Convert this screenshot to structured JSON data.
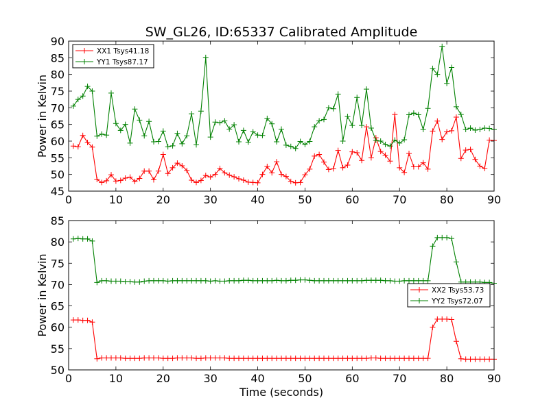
{
  "chart_data": [
    {
      "type": "line",
      "title": "SW_GL26, ID:65337 Calibrated Amplitude",
      "xlabel": "",
      "ylabel": "Power in Kelvin",
      "xlim": [
        0,
        90
      ],
      "ylim": [
        45,
        90
      ],
      "xticks": [
        0,
        10,
        20,
        30,
        40,
        50,
        60,
        70,
        80,
        90
      ],
      "yticks": [
        45,
        50,
        55,
        60,
        65,
        70,
        75,
        80,
        85,
        90
      ],
      "legend_position": "top-left",
      "series": [
        {
          "name": "XX1 Tsys41.18",
          "color": "#ff0000",
          "x": [
            1,
            2,
            3,
            4,
            5,
            6,
            7,
            8,
            9,
            10,
            11,
            12,
            13,
            14,
            15,
            16,
            17,
            18,
            19,
            20,
            21,
            22,
            23,
            24,
            25,
            26,
            27,
            28,
            29,
            30,
            31,
            32,
            33,
            34,
            35,
            36,
            37,
            38,
            39,
            40,
            41,
            42,
            43,
            44,
            45,
            46,
            47,
            48,
            49,
            50,
            51,
            52,
            53,
            54,
            55,
            56,
            57,
            58,
            59,
            60,
            61,
            62,
            63,
            64,
            65,
            66,
            67,
            68,
            69,
            70,
            71,
            72,
            73,
            74,
            75,
            76,
            77,
            78,
            79,
            80,
            81,
            82,
            83,
            84,
            85,
            86,
            87,
            88,
            89,
            90
          ],
          "values": [
            58.5,
            58.3,
            61.7,
            59.6,
            58.2,
            48.5,
            47.6,
            48.1,
            49.9,
            48.0,
            48.2,
            48.9,
            49.2,
            47.9,
            48.8,
            51.0,
            51.0,
            48.4,
            51.0,
            56.0,
            50.3,
            52.0,
            53.4,
            52.6,
            51.2,
            48.3,
            47.6,
            48.2,
            49.7,
            49.2,
            50.0,
            51.8,
            50.5,
            49.8,
            49.3,
            48.7,
            48.3,
            47.7,
            47.6,
            47.5,
            50.0,
            52.4,
            50.5,
            53.8,
            50.0,
            49.4,
            47.9,
            47.5,
            47.6,
            49.9,
            51.6,
            55.5,
            56.0,
            53.7,
            51.5,
            51.7,
            57.2,
            52.0,
            52.8,
            56.8,
            56.5,
            54.2,
            64.3,
            55.0,
            61.0,
            56.9,
            55.8,
            54.0,
            68.0,
            52.0,
            50.6,
            56.3,
            52.3,
            52.3,
            53.5,
            51.6,
            63.0,
            66.0,
            60.5,
            62.8,
            63.1,
            67.2,
            54.8,
            57.3,
            57.5,
            54.5,
            52.5,
            51.8,
            60.3,
            60.2
          ]
        },
        {
          "name": "YY1 Tsys87.17",
          "color": "#008000",
          "x": [
            1,
            2,
            3,
            4,
            5,
            6,
            7,
            8,
            9,
            10,
            11,
            12,
            13,
            14,
            15,
            16,
            17,
            18,
            19,
            20,
            21,
            22,
            23,
            24,
            25,
            26,
            27,
            28,
            29,
            30,
            31,
            32,
            33,
            34,
            35,
            36,
            37,
            38,
            39,
            40,
            41,
            42,
            43,
            44,
            45,
            46,
            47,
            48,
            49,
            50,
            51,
            52,
            53,
            54,
            55,
            56,
            57,
            58,
            59,
            60,
            61,
            62,
            63,
            64,
            65,
            66,
            67,
            68,
            69,
            70,
            71,
            72,
            73,
            74,
            75,
            76,
            77,
            78,
            79,
            80,
            81,
            82,
            83,
            84,
            85,
            86,
            87,
            88,
            89,
            90
          ],
          "values": [
            70.5,
            72.5,
            73.5,
            76.4,
            75.0,
            61.5,
            62.1,
            61.8,
            74.4,
            65.3,
            63.2,
            65.0,
            59.4,
            69.6,
            66.3,
            61.6,
            65.9,
            59.8,
            59.9,
            63.0,
            58.3,
            58.6,
            62.3,
            59.2,
            61.6,
            68.2,
            58.9,
            69.0,
            85.1,
            61.2,
            65.7,
            65.5,
            66.1,
            63.6,
            64.9,
            59.8,
            63.2,
            59.7,
            62.8,
            61.8,
            61.7,
            66.8,
            65.2,
            59.8,
            63.6,
            58.8,
            58.4,
            57.8,
            59.9,
            59.0,
            59.9,
            64.3,
            66.1,
            66.5,
            70.0,
            69.7,
            74.1,
            60.0,
            67.4,
            64.7,
            73.1,
            64.7,
            75.6,
            63.9,
            60.2,
            60.0,
            59.0,
            58.5,
            60.3,
            59.4,
            60.4,
            67.9,
            68.4,
            67.9,
            63.5,
            69.8,
            81.8,
            80.0,
            88.4,
            77.3,
            82.1,
            70.3,
            68.0,
            63.5,
            63.9,
            63.3,
            63.5,
            63.9,
            63.8,
            63.5
          ]
        }
      ]
    },
    {
      "type": "line",
      "title": "",
      "xlabel": "Time (seconds)",
      "ylabel": "Power in Kelvin",
      "xlim": [
        0,
        90
      ],
      "ylim": [
        50,
        85
      ],
      "xticks": [
        0,
        10,
        20,
        30,
        40,
        50,
        60,
        70,
        80,
        90
      ],
      "yticks": [
        50,
        55,
        60,
        65,
        70,
        75,
        80,
        85
      ],
      "legend_position": "right",
      "series": [
        {
          "name": "XX2 Tsys53.73",
          "color": "#ff0000",
          "x": [
            1,
            2,
            3,
            4,
            5,
            6,
            7,
            8,
            9,
            10,
            11,
            12,
            13,
            14,
            15,
            16,
            17,
            18,
            19,
            20,
            21,
            22,
            23,
            24,
            25,
            26,
            27,
            28,
            29,
            30,
            31,
            32,
            33,
            34,
            35,
            36,
            37,
            38,
            39,
            40,
            41,
            42,
            43,
            44,
            45,
            46,
            47,
            48,
            49,
            50,
            51,
            52,
            53,
            54,
            55,
            56,
            57,
            58,
            59,
            60,
            61,
            62,
            63,
            64,
            65,
            66,
            67,
            68,
            69,
            70,
            71,
            72,
            73,
            74,
            75,
            76,
            77,
            78,
            79,
            80,
            81,
            82,
            83,
            84,
            85,
            86,
            87,
            88,
            89,
            90
          ],
          "values": [
            61.7,
            61.7,
            61.6,
            61.6,
            61.2,
            52.6,
            52.8,
            52.8,
            52.8,
            52.8,
            52.8,
            52.7,
            52.7,
            52.7,
            52.7,
            52.8,
            52.8,
            52.8,
            52.8,
            52.7,
            52.7,
            52.7,
            52.8,
            52.8,
            52.8,
            52.8,
            52.7,
            52.7,
            52.8,
            52.8,
            52.8,
            52.8,
            52.8,
            52.7,
            52.7,
            52.7,
            52.7,
            52.7,
            52.7,
            52.7,
            52.7,
            52.7,
            52.7,
            52.7,
            52.7,
            52.7,
            52.7,
            52.7,
            52.7,
            52.7,
            52.7,
            52.7,
            52.7,
            52.7,
            52.7,
            52.7,
            52.7,
            52.7,
            52.7,
            52.7,
            52.7,
            52.7,
            52.7,
            52.8,
            52.8,
            52.7,
            52.7,
            52.7,
            52.7,
            52.7,
            52.7,
            52.7,
            52.7,
            52.7,
            52.7,
            52.7,
            60.0,
            61.9,
            61.9,
            61.9,
            61.8,
            56.7,
            52.6,
            52.5,
            52.5,
            52.5,
            52.5,
            52.5,
            52.5,
            52.5
          ]
        },
        {
          "name": "YY2 Tsys72.07",
          "color": "#008000",
          "x": [
            1,
            2,
            3,
            4,
            5,
            6,
            7,
            8,
            9,
            10,
            11,
            12,
            13,
            14,
            15,
            16,
            17,
            18,
            19,
            20,
            21,
            22,
            23,
            24,
            25,
            26,
            27,
            28,
            29,
            30,
            31,
            32,
            33,
            34,
            35,
            36,
            37,
            38,
            39,
            40,
            41,
            42,
            43,
            44,
            45,
            46,
            47,
            48,
            49,
            50,
            51,
            52,
            53,
            54,
            55,
            56,
            57,
            58,
            59,
            60,
            61,
            62,
            63,
            64,
            65,
            66,
            67,
            68,
            69,
            70,
            71,
            72,
            73,
            74,
            75,
            76,
            77,
            78,
            79,
            80,
            81,
            82,
            83,
            84,
            85,
            86,
            87,
            88,
            89,
            90
          ],
          "values": [
            80.7,
            80.8,
            80.7,
            80.7,
            80.2,
            70.5,
            70.9,
            70.9,
            70.8,
            70.8,
            70.8,
            70.7,
            70.7,
            70.6,
            70.6,
            70.8,
            70.9,
            70.9,
            70.9,
            70.9,
            70.8,
            70.9,
            70.9,
            70.9,
            70.9,
            70.9,
            70.9,
            70.9,
            70.9,
            70.8,
            70.9,
            70.8,
            70.8,
            70.9,
            70.9,
            70.9,
            71.0,
            71.0,
            70.9,
            70.9,
            70.9,
            70.9,
            70.9,
            71.0,
            70.9,
            70.9,
            71.0,
            71.0,
            71.1,
            71.1,
            71.0,
            70.9,
            70.9,
            70.9,
            70.9,
            70.9,
            70.9,
            70.9,
            70.9,
            70.9,
            70.9,
            70.9,
            71.0,
            71.0,
            71.0,
            71.0,
            70.9,
            70.9,
            70.8,
            70.8,
            70.9,
            70.9,
            70.9,
            70.9,
            70.9,
            70.9,
            79.0,
            81.0,
            81.0,
            81.0,
            80.8,
            75.3,
            70.6,
            70.6,
            70.6,
            70.6,
            70.6,
            70.5,
            70.5,
            70.3
          ]
        }
      ]
    }
  ]
}
